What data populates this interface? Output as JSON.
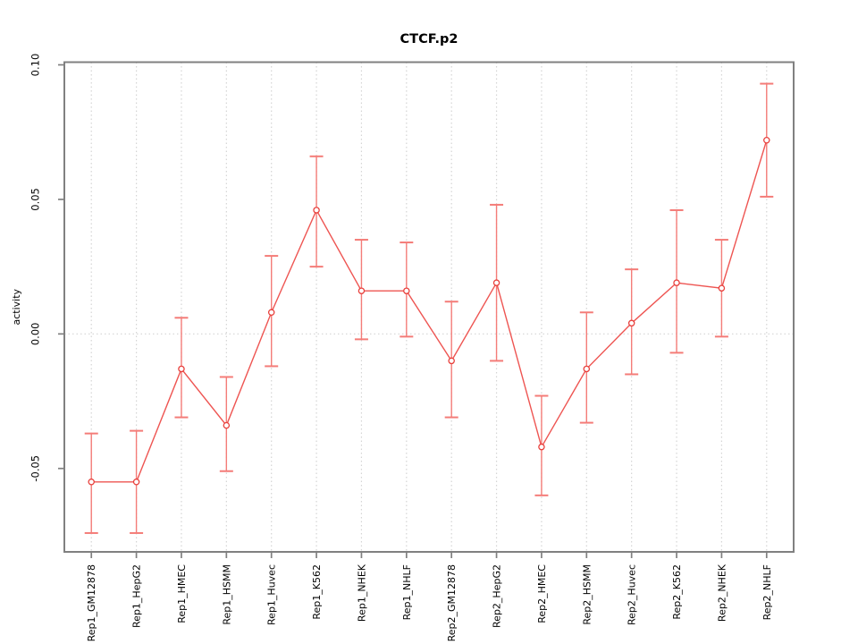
{
  "chart_data": {
    "type": "line",
    "title": "CTCF.p2",
    "xlabel": "",
    "ylabel": "activity",
    "legend": "none",
    "grid": "dotted vertical gridline at each category; dotted horizontal line at y=0",
    "categories": [
      "Rep1_GM12878",
      "Rep1_HepG2",
      "Rep1_HMEC",
      "Rep1_HSMM",
      "Rep1_Huvec",
      "Rep1_K562",
      "Rep1_NHEK",
      "Rep1_NHLF",
      "Rep2_GM12878",
      "Rep2_HepG2",
      "Rep2_HMEC",
      "Rep2_HSMM",
      "Rep2_Huvec",
      "Rep2_K562",
      "Rep2_NHEK",
      "Rep2_NHLF"
    ],
    "series": [
      {
        "name": "activity",
        "marker": "open-circle",
        "values": [
          -0.055,
          -0.055,
          -0.013,
          -0.034,
          0.008,
          0.046,
          0.016,
          0.016,
          -0.01,
          0.019,
          -0.042,
          -0.013,
          0.004,
          0.019,
          0.017,
          0.072
        ],
        "ci_lower": [
          -0.074,
          -0.074,
          -0.031,
          -0.051,
          -0.012,
          0.025,
          -0.002,
          -0.001,
          -0.031,
          -0.01,
          -0.06,
          -0.033,
          -0.015,
          -0.007,
          -0.001,
          0.051
        ],
        "ci_upper": [
          -0.037,
          -0.036,
          0.006,
          -0.016,
          0.029,
          0.066,
          0.035,
          0.034,
          0.012,
          0.048,
          -0.023,
          0.008,
          0.024,
          0.046,
          0.035,
          0.093
        ]
      }
    ],
    "yticks": [
      -0.05,
      0,
      0.05,
      0.1
    ],
    "ytick_labels": [
      "-0.05",
      "0.00",
      "0.05",
      "0.10"
    ],
    "ylim": [
      -0.081,
      0.101
    ],
    "colors": {
      "line": "#ee5552",
      "marker_stroke": "#e8403c",
      "marker_fill": "#ffffff",
      "error_bar": "#f47c78",
      "frame": "#808080",
      "tick": "#808080",
      "grid": "#d4d4d4",
      "text": "#000000",
      "background": "#ffffff"
    }
  }
}
